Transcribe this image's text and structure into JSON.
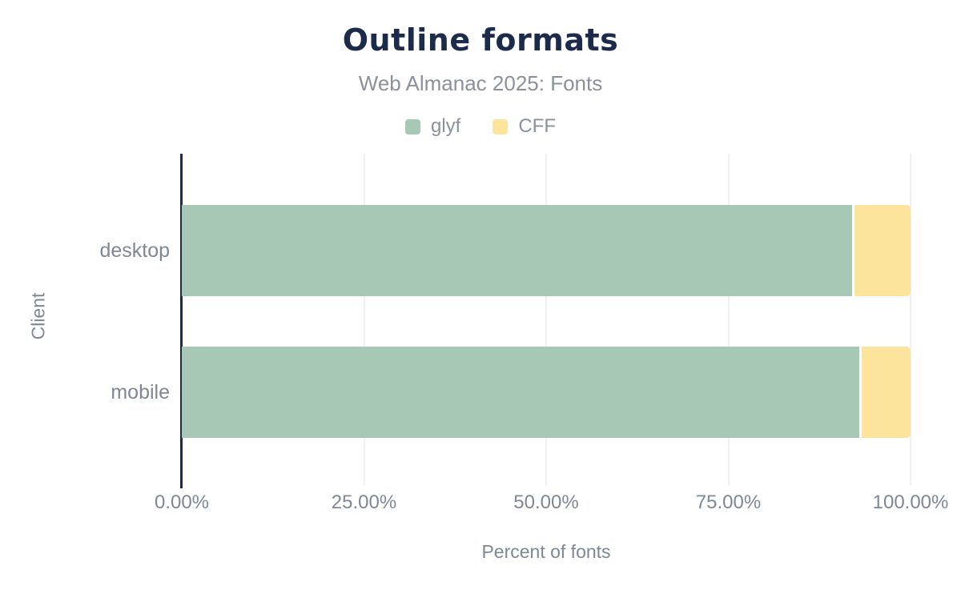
{
  "chart_data": {
    "type": "bar",
    "orientation": "horizontal",
    "stacked": true,
    "title": "Outline formats",
    "subtitle": "Web Almanac 2025: Fonts",
    "categories": [
      "desktop",
      "mobile"
    ],
    "series": [
      {
        "name": "glyf",
        "color": "#a8c8b6",
        "values": [
          92,
          93
        ]
      },
      {
        "name": "CFF",
        "color": "#fde49c",
        "values": [
          8,
          7
        ]
      }
    ],
    "xlabel": "Percent of fonts",
    "ylabel": "Client",
    "xlim": [
      0,
      100
    ],
    "x_ticks": [
      {
        "value": 0,
        "label": "0.00%"
      },
      {
        "value": 25,
        "label": "25.00%"
      },
      {
        "value": 50,
        "label": "50.00%"
      },
      {
        "value": 75,
        "label": "75.00%"
      },
      {
        "value": 100,
        "label": "100.00%"
      }
    ],
    "grid": "vertical",
    "legend_position": "top"
  },
  "colors": {
    "title": "#1c2b49",
    "axis_line": "#1c2b49",
    "muted_text": "#7f8794",
    "subtitle_text": "#8b919c",
    "gridline": "#eef0f1",
    "background": "#ffffff"
  }
}
